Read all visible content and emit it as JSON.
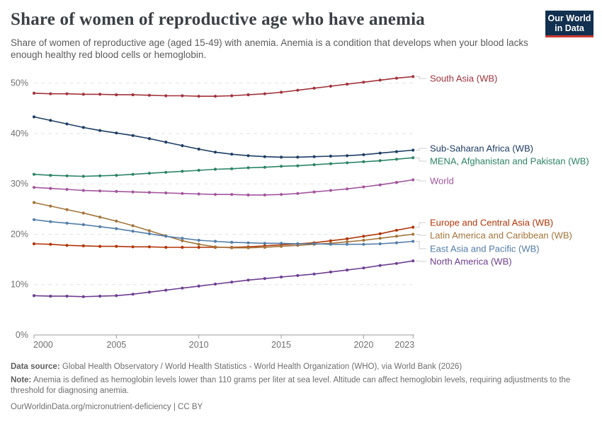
{
  "header": {
    "title": "Share of women of reproductive age who have anemia",
    "subtitle": "Share of women of reproductive age (aged 15-49) with anemia. Anemia is a condition that develops when your blood lacks enough healthy red blood cells or hemoglobin.",
    "logo": {
      "line1": "Our World",
      "line2": "in Data",
      "bg_color": "#12304F",
      "bar_color": "#CE3A32"
    }
  },
  "footer": {
    "datasource_label": "Data source:",
    "datasource_text": "Global Health Observatory / World Health Statistics - World Health Organization (WHO), via World Bank (2026)",
    "note_label": "Note:",
    "note_text": "Anemia is defined as hemoglobin levels lower than 110 grams per liter at sea level. Altitude can affect hemoglobin levels, requiring adjustments to the threshold for diagnosing anemia.",
    "url_text": "OurWorldinData.org/micronutrient-deficiency | CC BY"
  },
  "chart_data": {
    "type": "line",
    "title": "Share of women of reproductive age who have anemia",
    "xlabel": "",
    "ylabel": "",
    "x": [
      2000,
      2001,
      2002,
      2003,
      2004,
      2005,
      2006,
      2007,
      2008,
      2009,
      2010,
      2011,
      2012,
      2013,
      2014,
      2015,
      2016,
      2017,
      2018,
      2019,
      2020,
      2021,
      2022,
      2023
    ],
    "x_ticks": [
      2000,
      2005,
      2010,
      2015,
      2020,
      2023
    ],
    "y_ticks": [
      0,
      10,
      20,
      30,
      40,
      50
    ],
    "y_tick_suffix": "%",
    "ylim": [
      0,
      52.5
    ],
    "grid": "horizontal-dashed",
    "legend_position": "right-end-labels",
    "series": [
      {
        "name": "South Asia (WB)",
        "color": "#A0333B",
        "values": [
          48.0,
          47.9,
          47.9,
          47.8,
          47.8,
          47.7,
          47.7,
          47.6,
          47.5,
          47.5,
          47.4,
          47.4,
          47.5,
          47.7,
          47.9,
          48.2,
          48.6,
          49.0,
          49.4,
          49.8,
          50.2,
          50.6,
          51.0,
          51.3
        ]
      },
      {
        "name": "Sub-Saharan Africa (WB)",
        "color": "#1D3D63",
        "values": [
          43.3,
          42.6,
          41.9,
          41.2,
          40.6,
          40.1,
          39.6,
          39.0,
          38.3,
          37.6,
          36.9,
          36.3,
          35.9,
          35.6,
          35.4,
          35.3,
          35.3,
          35.4,
          35.5,
          35.6,
          35.8,
          36.1,
          36.4,
          36.7
        ]
      },
      {
        "name": "MENA, Afghanistan and Pakistan (WB)",
        "color": "#2C8465",
        "values": [
          31.9,
          31.7,
          31.6,
          31.5,
          31.6,
          31.7,
          31.9,
          32.1,
          32.3,
          32.5,
          32.7,
          32.9,
          33.0,
          33.2,
          33.3,
          33.5,
          33.6,
          33.8,
          34.0,
          34.2,
          34.4,
          34.6,
          34.9,
          35.2
        ]
      },
      {
        "name": "World",
        "color": "#A2559C",
        "values": [
          29.3,
          29.1,
          28.9,
          28.7,
          28.6,
          28.5,
          28.4,
          28.3,
          28.2,
          28.1,
          28.0,
          27.9,
          27.9,
          27.8,
          27.8,
          27.9,
          28.1,
          28.4,
          28.7,
          29.0,
          29.4,
          29.8,
          30.3,
          30.8
        ]
      },
      {
        "name": "Europe and Central Asia (WB)",
        "color": "#B13507",
        "values": [
          18.1,
          18.0,
          17.8,
          17.7,
          17.6,
          17.6,
          17.5,
          17.5,
          17.4,
          17.4,
          17.4,
          17.4,
          17.4,
          17.5,
          17.7,
          17.9,
          18.1,
          18.3,
          18.7,
          19.1,
          19.6,
          20.1,
          20.8,
          21.4
        ]
      },
      {
        "name": "Latin America and Caribbean (WB)",
        "color": "#A3753A",
        "values": [
          26.3,
          25.6,
          24.9,
          24.2,
          23.4,
          22.6,
          21.7,
          20.7,
          19.7,
          18.7,
          18.0,
          17.5,
          17.3,
          17.3,
          17.4,
          17.6,
          17.8,
          18.0,
          18.2,
          18.5,
          18.8,
          19.2,
          19.6,
          20.0
        ]
      },
      {
        "name": "East Asia and Pacific (WB)",
        "color": "#527DA8",
        "values": [
          22.9,
          22.5,
          22.2,
          21.9,
          21.5,
          21.1,
          20.6,
          20.1,
          19.6,
          19.2,
          18.8,
          18.6,
          18.4,
          18.3,
          18.2,
          18.2,
          18.1,
          18.1,
          18.0,
          18.0,
          18.0,
          18.1,
          18.3,
          18.6
        ]
      },
      {
        "name": "North America (WB)",
        "color": "#6D3E91",
        "values": [
          7.8,
          7.7,
          7.7,
          7.6,
          7.7,
          7.8,
          8.1,
          8.5,
          8.9,
          9.3,
          9.7,
          10.1,
          10.5,
          10.9,
          11.2,
          11.5,
          11.8,
          12.1,
          12.5,
          12.9,
          13.3,
          13.8,
          14.2,
          14.7
        ]
      }
    ]
  }
}
